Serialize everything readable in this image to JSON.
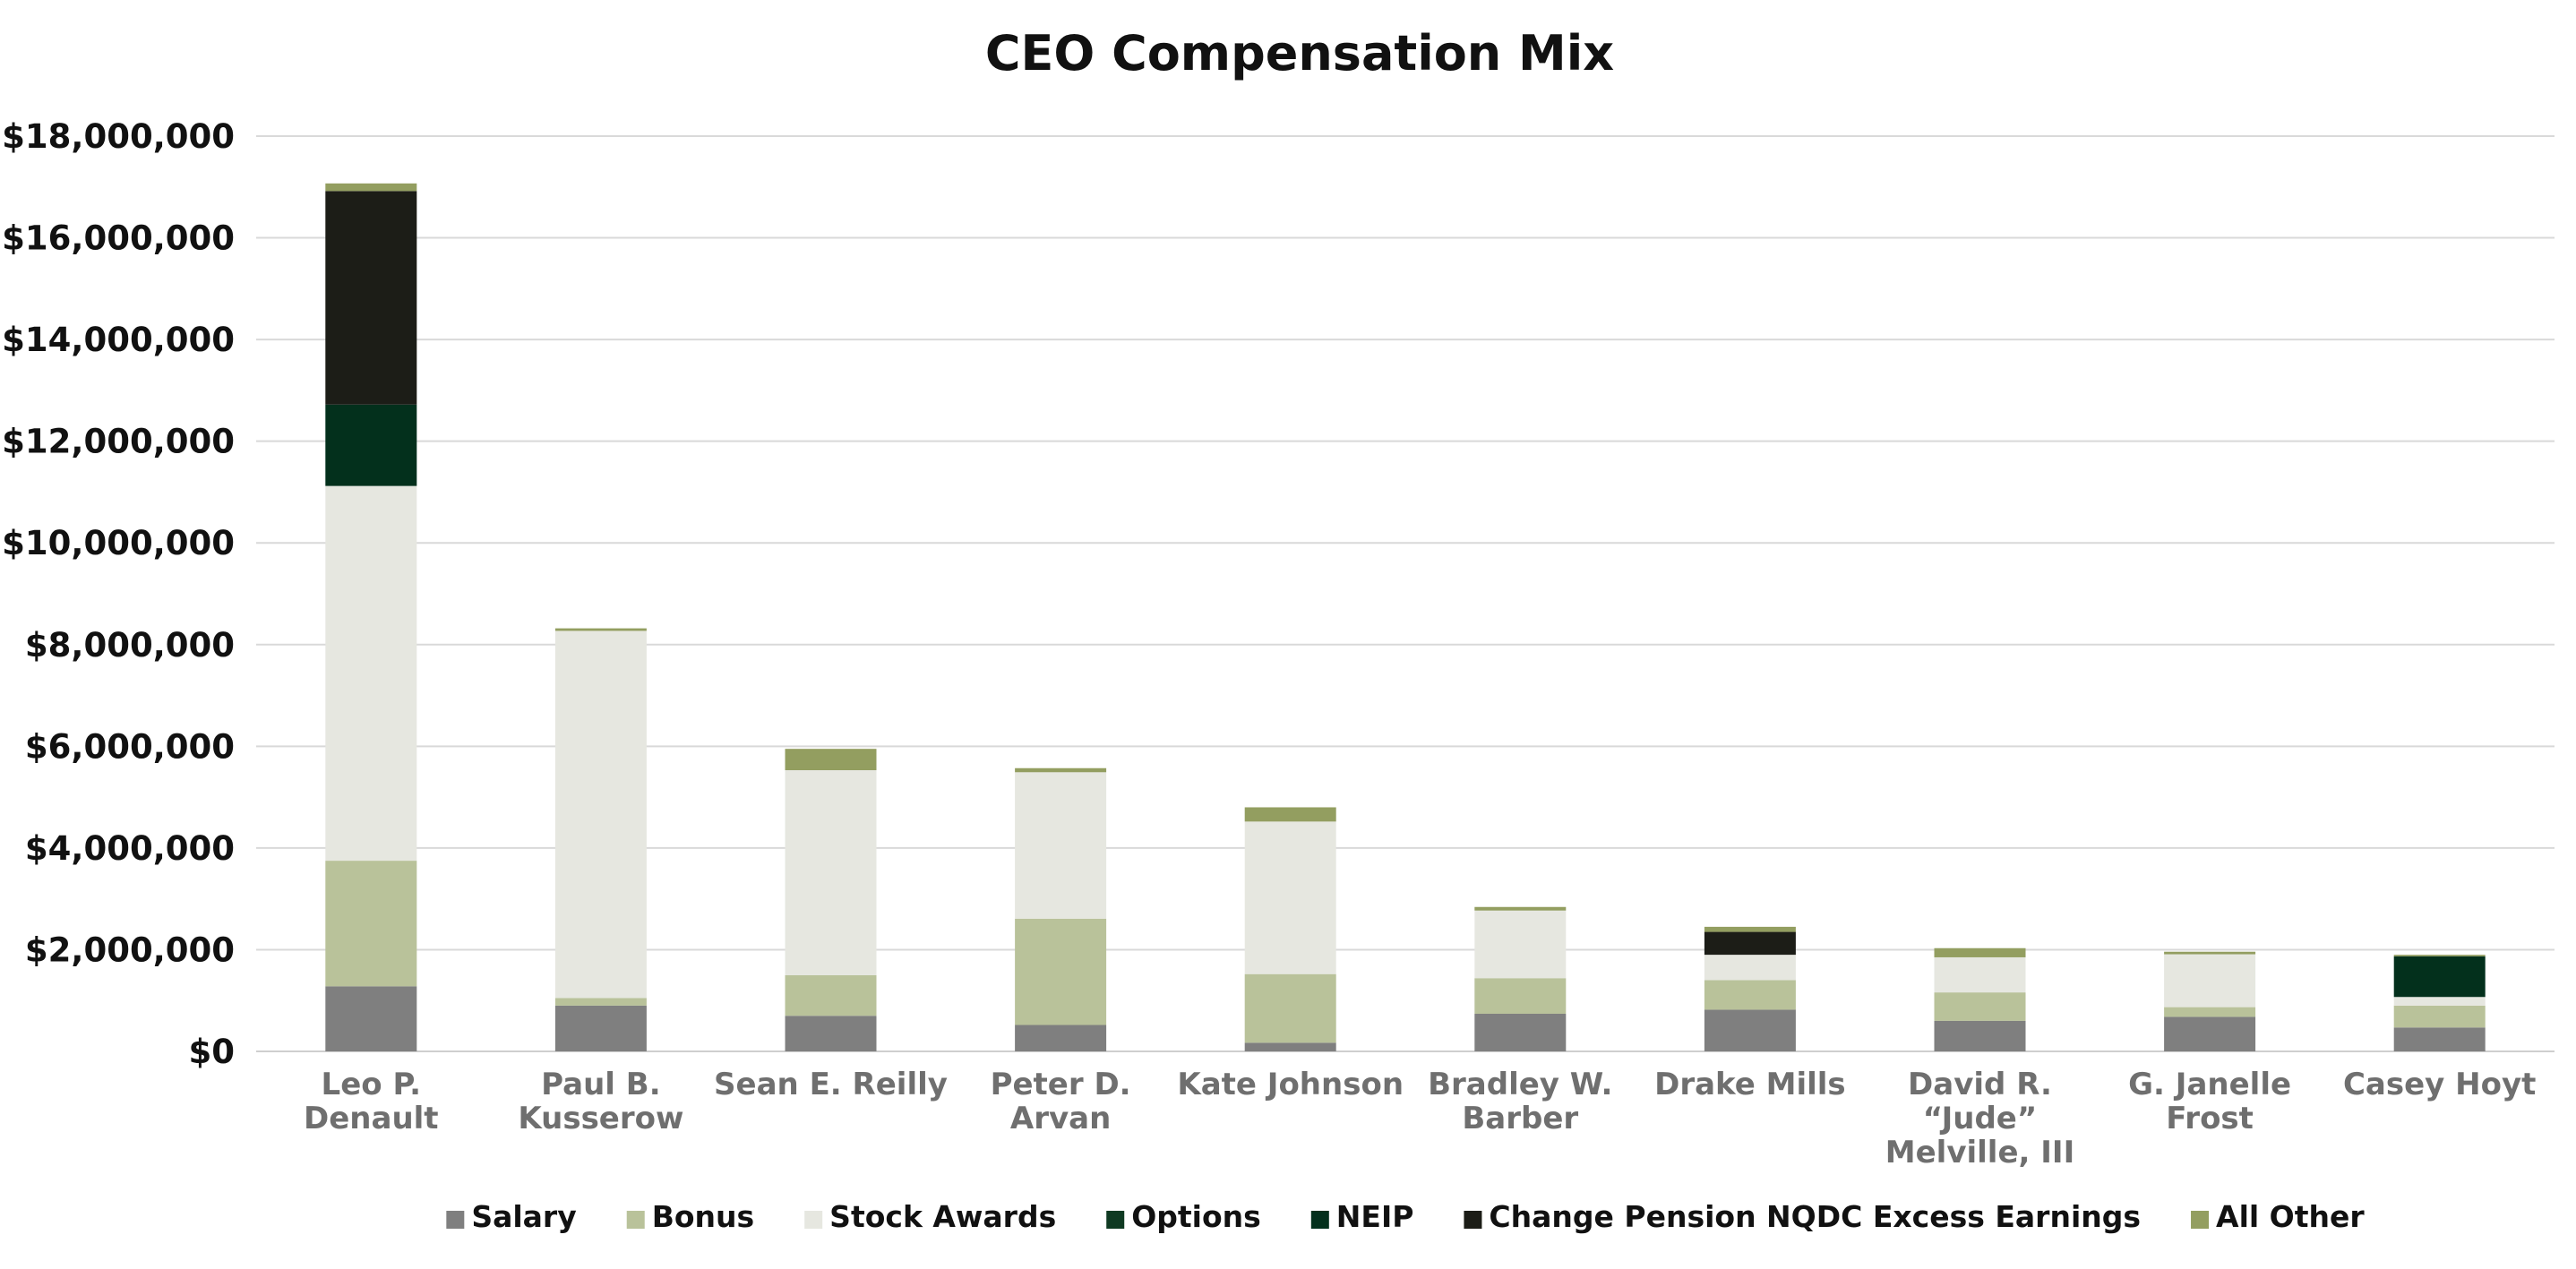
{
  "chart_data": {
    "type": "bar",
    "stacked": true,
    "title": "CEO Compensation Mix",
    "xlabel": "",
    "ylabel": "",
    "ylim": [
      0,
      18000000
    ],
    "yticks": [
      0,
      2000000,
      4000000,
      6000000,
      8000000,
      10000000,
      12000000,
      14000000,
      16000000,
      18000000
    ],
    "ytick_labels": [
      "$0",
      "$2,000,000",
      "$4,000,000",
      "$6,000,000",
      "$8,000,000",
      "$10,000,000",
      "$12,000,000",
      "$14,000,000",
      "$16,000,000",
      "$18,000,000"
    ],
    "grid": true,
    "legend_position": "bottom",
    "categories": [
      "Leo P. Denault",
      "Paul B. Kusserow",
      "Sean E. Reilly",
      "Peter D. Arvan",
      "Kate Johnson",
      "Bradley W. Barber",
      "Drake Mills",
      "David R. “Jude” Melville, III",
      "G. Janelle Frost",
      "Casey Hoyt"
    ],
    "category_label_lines": [
      [
        "Leo P.",
        "Denault"
      ],
      [
        "Paul B.",
        "Kusserow"
      ],
      [
        "Sean E. Reilly"
      ],
      [
        "Peter D.",
        "Arvan"
      ],
      [
        "Kate Johnson"
      ],
      [
        "Bradley W.",
        "Barber"
      ],
      [
        "Drake Mills"
      ],
      [
        "David R.",
        "“Jude”",
        "Melville, III"
      ],
      [
        "G. Janelle",
        "Frost"
      ],
      [
        "Casey Hoyt"
      ]
    ],
    "series": [
      {
        "name": "Salary",
        "color": "#7f7f7f",
        "values": [
          1280000,
          900000,
          700000,
          520000,
          170000,
          740000,
          820000,
          600000,
          680000,
          470000
        ]
      },
      {
        "name": "Bonus",
        "color": "#b9c29a",
        "values": [
          2470000,
          150000,
          800000,
          2090000,
          1350000,
          700000,
          580000,
          560000,
          190000,
          430000
        ]
      },
      {
        "name": "Stock Awards",
        "color": "#e6e7e0",
        "values": [
          7370000,
          7220000,
          4030000,
          2880000,
          3000000,
          1330000,
          500000,
          690000,
          1040000,
          170000
        ]
      },
      {
        "name": "Options",
        "color": "#0f3a22",
        "values": [
          0,
          0,
          0,
          0,
          0,
          0,
          0,
          0,
          0,
          0
        ]
      },
      {
        "name": "NEIP",
        "color": "#03301c",
        "values": [
          1600000,
          0,
          0,
          0,
          0,
          0,
          0,
          0,
          0,
          800000
        ]
      },
      {
        "name": "Change Pension NQDC Excess Earnings",
        "color": "#1c1d17",
        "values": [
          4200000,
          0,
          0,
          0,
          0,
          0,
          450000,
          0,
          0,
          0
        ]
      },
      {
        "name": "All Other",
        "color": "#939e60",
        "values": [
          150000,
          50000,
          420000,
          80000,
          280000,
          70000,
          100000,
          180000,
          50000,
          30000
        ]
      }
    ]
  }
}
